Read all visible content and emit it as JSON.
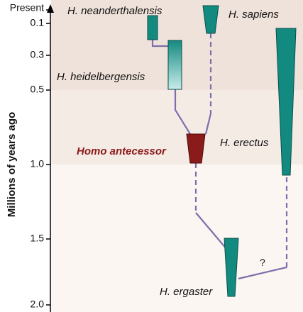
{
  "axis": {
    "label": "Millions of years ago",
    "ticks": [
      "Present",
      "0.1",
      "0.3",
      "0.5",
      "1.0",
      "1.5",
      "2.0"
    ]
  },
  "species": [
    {
      "label": "H. neanderthalensis"
    },
    {
      "label": "H. sapiens"
    },
    {
      "label": "H. heidelbergensis"
    },
    {
      "label": "H. erectus"
    },
    {
      "label": "Homo antecessor"
    },
    {
      "label": "H. ergaster"
    }
  ],
  "question": "?"
}
